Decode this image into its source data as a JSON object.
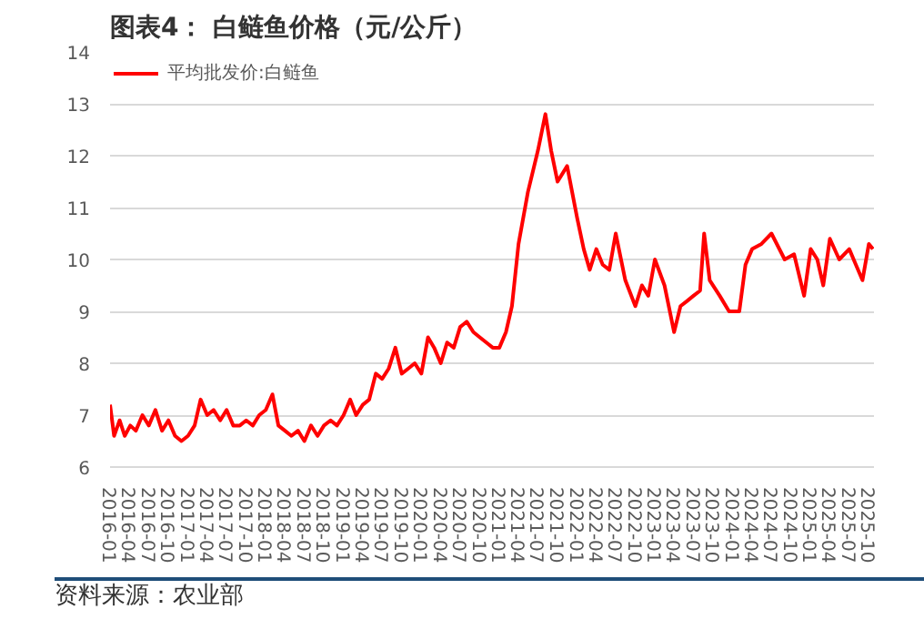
{
  "chart_data": {
    "type": "line",
    "title": "图表4：  白鲢鱼价格（元/公斤）",
    "x": [
      "2016-01-01",
      "2016-01-20",
      "2016-02-15",
      "2016-03-10",
      "2016-04-05",
      "2016-05-01",
      "2016-06-01",
      "2016-07-01",
      "2016-08-01",
      "2016-09-01",
      "2016-10-01",
      "2016-11-01",
      "2016-12-01",
      "2017-01-01",
      "2017-02-01",
      "2017-03-01",
      "2017-04-01",
      "2017-05-01",
      "2017-06-01",
      "2017-07-01",
      "2017-08-01",
      "2017-09-01",
      "2017-10-01",
      "2017-11-01",
      "2017-12-01",
      "2018-01-01",
      "2018-02-01",
      "2018-03-01",
      "2018-04-01",
      "2018-05-01",
      "2018-06-01",
      "2018-07-01",
      "2018-08-01",
      "2018-09-01",
      "2018-10-01",
      "2018-11-01",
      "2018-12-01",
      "2019-01-01",
      "2019-02-01",
      "2019-03-01",
      "2019-04-01",
      "2019-05-01",
      "2019-06-01",
      "2019-07-01",
      "2019-08-01",
      "2019-09-01",
      "2019-10-01",
      "2019-11-01",
      "2019-12-01",
      "2020-01-01",
      "2020-02-01",
      "2020-03-01",
      "2020-04-01",
      "2020-05-01",
      "2020-06-01",
      "2020-07-01",
      "2020-08-01",
      "2020-09-01",
      "2020-10-01",
      "2020-11-01",
      "2020-12-01",
      "2021-01-01",
      "2021-02-01",
      "2021-03-01",
      "2021-04-01",
      "2021-05-15",
      "2021-07-01",
      "2021-08-05",
      "2021-09-01",
      "2021-10-01",
      "2021-11-15",
      "2022-01-01",
      "2022-02-01",
      "2022-03-01",
      "2022-04-01",
      "2022-05-01",
      "2022-06-01",
      "2022-07-01",
      "2022-08-15",
      "2022-10-01",
      "2022-11-01",
      "2022-12-01",
      "2023-01-01",
      "2023-02-15",
      "2023-04-01",
      "2023-05-01",
      "2023-06-01",
      "2023-07-01",
      "2023-08-01",
      "2023-08-20",
      "2023-09-15",
      "2023-11-01",
      "2023-12-15",
      "2024-02-01",
      "2024-03-01",
      "2024-04-01",
      "2024-05-15",
      "2024-07-01",
      "2024-09-01",
      "2024-10-15",
      "2024-12-01",
      "2025-01-01",
      "2025-02-01",
      "2025-03-01",
      "2025-04-01",
      "2025-05-15",
      "2025-07-01",
      "2025-08-01",
      "2025-09-01",
      "2025-10-01",
      "2025-10-20"
    ],
    "series": [
      {
        "name": "平均批发价:白鲢鱼",
        "color": "#ff0000",
        "values": [
          7.2,
          6.6,
          6.9,
          6.6,
          6.8,
          6.7,
          7.0,
          6.8,
          7.1,
          6.7,
          6.9,
          6.6,
          6.5,
          6.6,
          6.8,
          7.3,
          7.0,
          7.1,
          6.9,
          7.1,
          6.8,
          6.8,
          6.9,
          6.8,
          7.0,
          7.1,
          7.4,
          6.8,
          6.7,
          6.6,
          6.7,
          6.5,
          6.8,
          6.6,
          6.8,
          6.9,
          6.8,
          7.0,
          7.3,
          7.0,
          7.2,
          7.3,
          7.8,
          7.7,
          7.9,
          8.3,
          7.8,
          7.9,
          8.0,
          7.8,
          8.5,
          8.3,
          8.0,
          8.4,
          8.3,
          8.7,
          8.8,
          8.6,
          8.5,
          8.4,
          8.3,
          8.3,
          8.6,
          9.1,
          10.3,
          11.3,
          12.1,
          12.8,
          12.1,
          11.5,
          11.8,
          10.8,
          10.2,
          9.8,
          10.2,
          9.9,
          9.8,
          10.5,
          9.6,
          9.1,
          9.5,
          9.3,
          10.0,
          9.5,
          8.6,
          9.1,
          9.2,
          9.3,
          9.4,
          10.5,
          9.6,
          9.3,
          9.0,
          9.0,
          9.9,
          10.2,
          10.3,
          10.5,
          10.0,
          10.1,
          9.3,
          10.2,
          10.0,
          9.5,
          10.4,
          10.0,
          10.2,
          9.9,
          9.6,
          10.3,
          10.2
        ]
      }
    ],
    "xlim": [
      "2016-01-01",
      "2025-10-25"
    ],
    "xticks": [
      {
        "value": "2016-01",
        "label": "2016-01"
      },
      {
        "value": "2016-04",
        "label": "2016-04"
      },
      {
        "value": "2016-07",
        "label": "2016-07"
      },
      {
        "value": "2016-10",
        "label": "2016-10"
      },
      {
        "value": "2017-01",
        "label": "2017-01"
      },
      {
        "value": "2017-04",
        "label": "2017-04"
      },
      {
        "value": "2017-07",
        "label": "2017-07"
      },
      {
        "value": "2017-10",
        "label": "2017-10"
      },
      {
        "value": "2018-01",
        "label": "2018-01"
      },
      {
        "value": "2018-04",
        "label": "2018-04"
      },
      {
        "value": "2018-07",
        "label": "2018-07"
      },
      {
        "value": "2018-10",
        "label": "2018-10"
      },
      {
        "value": "2019-01",
        "label": "2019-01"
      },
      {
        "value": "2019-04",
        "label": "2019-04"
      },
      {
        "value": "2019-07",
        "label": "2019-07"
      },
      {
        "value": "2019-10",
        "label": "2019-10"
      },
      {
        "value": "2020-01",
        "label": "2020-01"
      },
      {
        "value": "2020-04",
        "label": "2020-04"
      },
      {
        "value": "2020-07",
        "label": "2020-07"
      },
      {
        "value": "2020-10",
        "label": "2020-10"
      },
      {
        "value": "2021-01",
        "label": "2021-01"
      },
      {
        "value": "2021-04",
        "label": "2021-04"
      },
      {
        "value": "2021-07",
        "label": "2021-07"
      },
      {
        "value": "2021-10",
        "label": "2021-10"
      },
      {
        "value": "2022-01",
        "label": "2022-01"
      },
      {
        "value": "2022-04",
        "label": "2022-04"
      },
      {
        "value": "2022-07",
        "label": "2022-07"
      },
      {
        "value": "2022-10",
        "label": "2022-10"
      },
      {
        "value": "2023-01",
        "label": "2023-01"
      },
      {
        "value": "2023-04",
        "label": "2023-04"
      },
      {
        "value": "2023-07",
        "label": "2023-07"
      },
      {
        "value": "2023-10",
        "label": "2023-10"
      },
      {
        "value": "2024-01",
        "label": "2024-01"
      },
      {
        "value": "2024-04",
        "label": "2024-04"
      },
      {
        "value": "2024-07",
        "label": "2024-07"
      },
      {
        "value": "2024-10",
        "label": "2024-10"
      },
      {
        "value": "2025-01",
        "label": "2025-01"
      },
      {
        "value": "2025-04",
        "label": "2025-04"
      },
      {
        "value": "2025-07",
        "label": "2025-07"
      },
      {
        "value": "2025-10",
        "label": "2025-10"
      }
    ],
    "ylim": [
      6,
      14
    ],
    "yticks": [
      6,
      7,
      8,
      9,
      10,
      11,
      12,
      13,
      14
    ],
    "grid": "y",
    "legend": "top left",
    "marker": "none",
    "line_style": "solid",
    "annotations": [
      "资料来源：农业部"
    ]
  }
}
